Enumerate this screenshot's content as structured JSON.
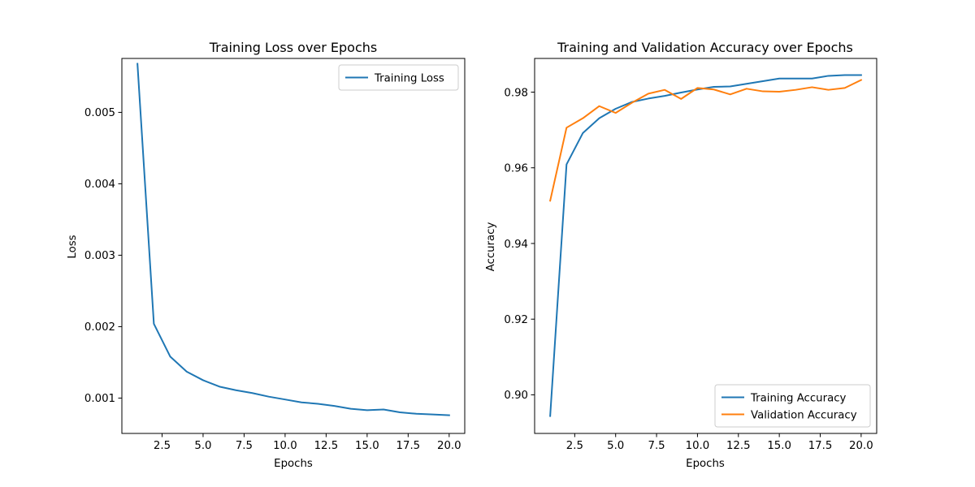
{
  "chart_data": [
    {
      "type": "line",
      "title": "Training Loss over Epochs",
      "xlabel": "Epochs",
      "ylabel": "Loss",
      "xlim": [
        0.05,
        20.95
      ],
      "ylim": [
        0.000505,
        0.005755
      ],
      "xticks": [
        2.5,
        5.0,
        7.5,
        10.0,
        12.5,
        15.0,
        17.5,
        20.0
      ],
      "xtick_labels": [
        "2.5",
        "5.0",
        "7.5",
        "10.0",
        "12.5",
        "15.0",
        "17.5",
        "20.0"
      ],
      "yticks": [
        0.001,
        0.002,
        0.003,
        0.004,
        0.005
      ],
      "ytick_labels": [
        "0.001",
        "0.002",
        "0.003",
        "0.004",
        "0.005"
      ],
      "grid": false,
      "legend_position": "upper-right",
      "x": [
        1,
        2,
        3,
        4,
        5,
        6,
        7,
        8,
        9,
        10,
        11,
        12,
        13,
        14,
        15,
        16,
        17,
        18,
        19,
        20
      ],
      "series": [
        {
          "name": "Training Loss",
          "color": "#1f77b4",
          "values": [
            0.00568,
            0.00204,
            0.00158,
            0.00137,
            0.00125,
            0.00116,
            0.00111,
            0.00107,
            0.00102,
            0.00098,
            0.00094,
            0.00092,
            0.00089,
            0.00085,
            0.00083,
            0.00084,
            0.0008,
            0.00078,
            0.00077,
            0.00076
          ]
        }
      ]
    },
    {
      "type": "line",
      "title": "Training and Validation Accuracy over Epochs",
      "xlabel": "Epochs",
      "ylabel": "Accuracy",
      "xlim": [
        0.05,
        20.95
      ],
      "ylim": [
        0.8898,
        0.9889
      ],
      "xticks": [
        2.5,
        5.0,
        7.5,
        10.0,
        12.5,
        15.0,
        17.5,
        20.0
      ],
      "xtick_labels": [
        "2.5",
        "5.0",
        "7.5",
        "10.0",
        "12.5",
        "15.0",
        "17.5",
        "20.0"
      ],
      "yticks": [
        0.9,
        0.92,
        0.94,
        0.96,
        0.98
      ],
      "ytick_labels": [
        "0.90",
        "0.92",
        "0.94",
        "0.96",
        "0.98"
      ],
      "grid": false,
      "legend_position": "lower-right",
      "x": [
        1,
        2,
        3,
        4,
        5,
        6,
        7,
        8,
        9,
        10,
        11,
        12,
        13,
        14,
        15,
        16,
        17,
        18,
        19,
        20
      ],
      "series": [
        {
          "name": "Training Accuracy",
          "color": "#1f77b4",
          "values": [
            0.8944,
            0.9609,
            0.9692,
            0.9731,
            0.9756,
            0.9774,
            0.9783,
            0.979,
            0.9799,
            0.9807,
            0.9814,
            0.9815,
            0.9822,
            0.9829,
            0.9836,
            0.9836,
            0.9836,
            0.9843,
            0.9845,
            0.9845
          ]
        },
        {
          "name": "Validation Accuracy",
          "color": "#ff7f0e",
          "values": [
            0.9513,
            0.9706,
            0.9731,
            0.9763,
            0.9745,
            0.9772,
            0.9796,
            0.9806,
            0.9782,
            0.9811,
            0.9807,
            0.9794,
            0.9809,
            0.9802,
            0.9801,
            0.9806,
            0.9813,
            0.9806,
            0.9811,
            0.9832
          ]
        }
      ]
    }
  ]
}
